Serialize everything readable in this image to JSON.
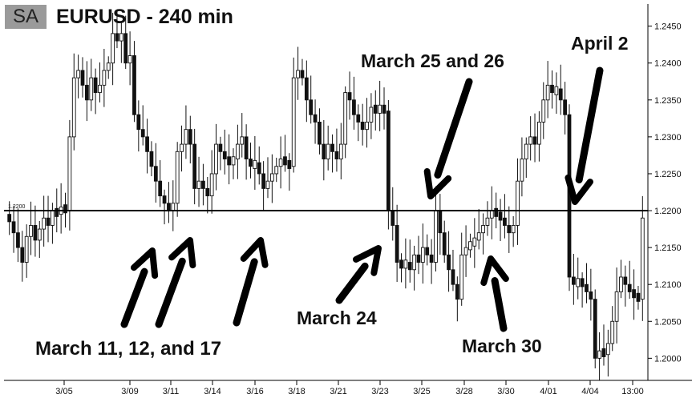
{
  "header": {
    "badge": "SA",
    "title": "EURUSD - 240 min"
  },
  "chart_data": {
    "type": "candlestick",
    "symbol": "EURUSD",
    "timeframe": "240 min",
    "ylim": [
      1.197,
      1.248
    ],
    "yticks": [
      "1.2000",
      "1.2050",
      "1.2100",
      "1.2150",
      "1.2200",
      "1.2250",
      "1.2300",
      "1.2350",
      "1.2400",
      "1.2450"
    ],
    "xticks": [
      "3/05",
      "3/09",
      "3/11",
      "3/14",
      "3/16",
      "3/18",
      "3/21",
      "3/23",
      "3/25",
      "3/28",
      "3/30",
      "4/01",
      "4/04",
      "13:00"
    ],
    "support_level": 1.22,
    "support_label": "1.2200",
    "annotations": [
      "March 11, 12, and 17",
      "March 24",
      "March 25 and 26",
      "March 30",
      "April 2"
    ],
    "closes": [
      1.2185,
      1.217,
      1.215,
      1.213,
      1.2165,
      1.218,
      1.216,
      1.2175,
      1.219,
      1.218,
      1.22,
      1.2195,
      1.2205,
      1.22,
      1.23,
      1.238,
      1.239,
      1.237,
      1.235,
      1.238,
      1.236,
      1.237,
      1.239,
      1.24,
      1.244,
      1.243,
      1.244,
      1.24,
      1.241,
      1.233,
      1.231,
      1.23,
      1.228,
      1.226,
      1.224,
      1.222,
      1.221,
      1.22,
      1.221,
      1.228,
      1.229,
      1.231,
      1.229,
      1.223,
      1.224,
      1.223,
      1.222,
      1.225,
      1.229,
      1.228,
      1.227,
      1.2265,
      1.227,
      1.229,
      1.23,
      1.227,
      1.226,
      1.2265,
      1.225,
      1.223,
      1.224,
      1.225,
      1.226,
      1.227,
      1.2265,
      1.226,
      1.238,
      1.239,
      1.238,
      1.235,
      1.233,
      1.232,
      1.229,
      1.227,
      1.229,
      1.228,
      1.227,
      1.229,
      1.236,
      1.235,
      1.233,
      1.232,
      1.231,
      1.232,
      1.234,
      1.2335,
      1.234,
      1.2335,
      1.22,
      1.218,
      1.213,
      1.2125,
      1.213,
      1.212,
      1.214,
      1.213,
      1.215,
      1.214,
      1.213,
      1.22,
      1.217,
      1.214,
      1.212,
      1.21,
      1.208,
      1.214,
      1.215,
      1.2155,
      1.216,
      1.217,
      1.218,
      1.219,
      1.22,
      1.2195,
      1.219,
      1.218,
      1.217,
      1.218,
      1.224,
      1.227,
      1.229,
      1.23,
      1.229,
      1.232,
      1.235,
      1.237,
      1.236,
      1.2365,
      1.235,
      1.233,
      1.211,
      1.21,
      1.2105,
      1.21,
      1.209,
      1.208,
      1.2,
      1.201,
      1.2005,
      1.202,
      1.205,
      1.209,
      1.211,
      1.21,
      1.209,
      1.2085,
      1.208,
      1.219
    ]
  }
}
